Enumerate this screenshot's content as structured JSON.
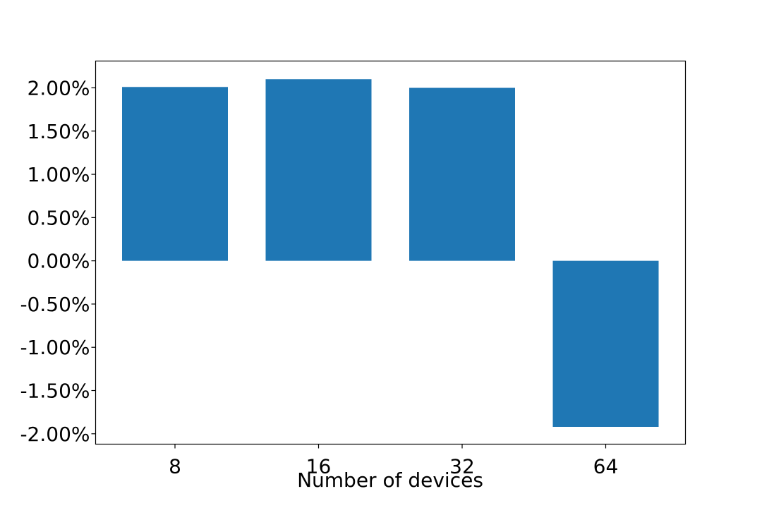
{
  "chart_data": {
    "type": "bar",
    "title": "",
    "xlabel": "Number of devices",
    "ylabel": "",
    "categories": [
      "8",
      "16",
      "32",
      "64"
    ],
    "values": [
      0.0201,
      0.021,
      0.02,
      -0.0192
    ],
    "ylim": [
      -0.0212,
      0.0231
    ],
    "yticks": [
      -0.02,
      -0.015,
      -0.01,
      -0.005,
      0,
      0.005,
      0.01,
      0.015,
      0.02
    ],
    "ytick_labels": [
      "-2.00%",
      "-1.50%",
      "-1.00%",
      "-0.50%",
      "0.00%",
      "0.50%",
      "1.00%",
      "1.50%",
      "2.00%"
    ],
    "bar_color": "#1f77b4",
    "grid": false,
    "legend": "none"
  }
}
